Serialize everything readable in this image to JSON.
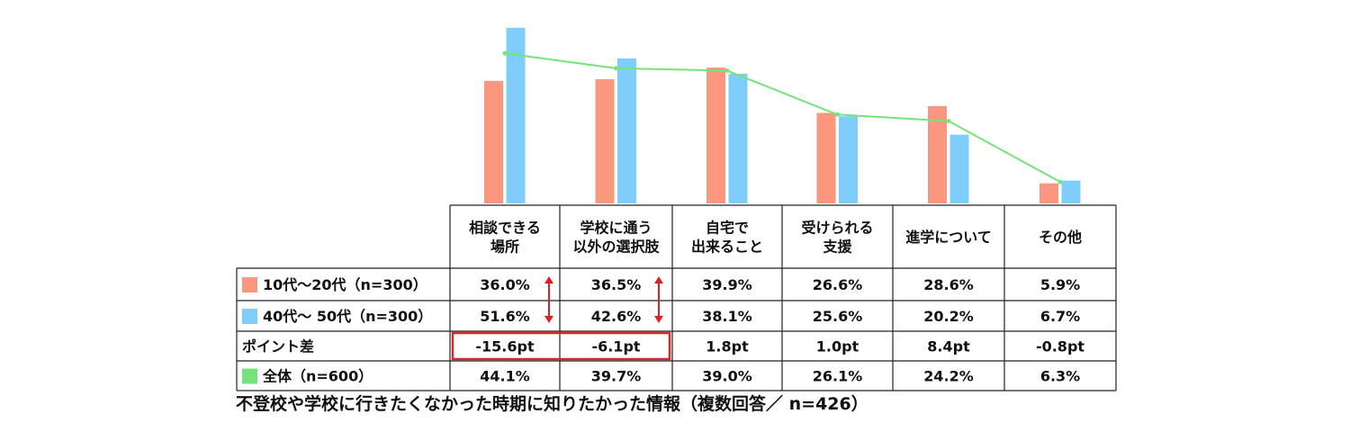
{
  "caption": "不登校や学校に行きたくなかった時期に知りたかった情報（複数回答／ n=426）",
  "colors": {
    "series_1020": "#fa977e",
    "series_4050": "#7fcdfb",
    "series_all": "#74e47a",
    "highlight": "#d62a2a",
    "arrow": "#e02020"
  },
  "chart_data": {
    "type": "bar",
    "categories": [
      "相談できる\n場所",
      "学校に通う\n以外の選択肢",
      "自宅で\n出来ること",
      "受けられる\n支援",
      "進学について",
      "その他"
    ],
    "series": [
      {
        "name": "10代～20代（n=300）",
        "type": "bar",
        "values": [
          36.0,
          36.5,
          39.9,
          26.6,
          28.6,
          5.9
        ]
      },
      {
        "name": "40代～ 50代（n=300）",
        "type": "bar",
        "values": [
          51.6,
          42.6,
          38.1,
          25.6,
          20.2,
          6.7
        ]
      },
      {
        "name": "全体（n=600）",
        "type": "line",
        "values": [
          44.1,
          39.7,
          39.0,
          26.1,
          24.2,
          6.3
        ]
      }
    ],
    "ylim": [
      0,
      55
    ],
    "table": {
      "rows": [
        {
          "label": "10代～20代（n=300）",
          "values": [
            "36.0%",
            "36.5%",
            "39.9%",
            "26.6%",
            "28.6%",
            "5.9%"
          ]
        },
        {
          "label": "40代～ 50代（n=300）",
          "values": [
            "51.6%",
            "42.6%",
            "38.1%",
            "25.6%",
            "20.2%",
            "6.7%"
          ]
        },
        {
          "label": "ポイント差",
          "values": [
            "-15.6pt",
            "-6.1pt",
            "1.8pt",
            "1.0pt",
            "8.4pt",
            "-0.8pt"
          ]
        },
        {
          "label": "全体（n=600）",
          "values": [
            "44.1%",
            "39.7%",
            "39.0%",
            "26.1%",
            "24.2%",
            "6.3%"
          ]
        }
      ]
    },
    "highlighted_categories": [
      0,
      1
    ]
  }
}
